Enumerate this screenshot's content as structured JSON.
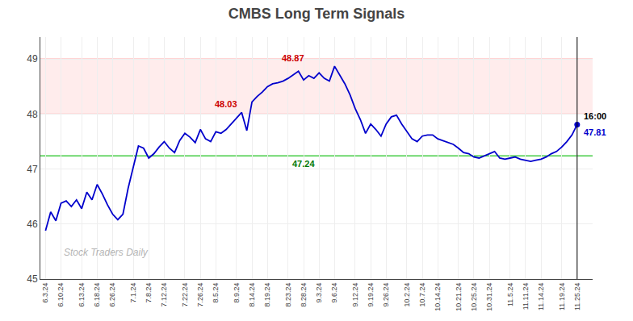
{
  "chart_data": {
    "type": "line",
    "title": "CMBS Long Term Signals",
    "categories": [
      "6.3.24",
      null,
      null,
      "6.10.24",
      null,
      null,
      null,
      "6.13.24",
      null,
      null,
      "6.18.24",
      null,
      null,
      "6.26.24",
      null,
      null,
      null,
      "7.1.24",
      null,
      null,
      "7.8.24",
      null,
      null,
      "7.12.24",
      null,
      null,
      null,
      "7.22.24",
      null,
      null,
      "7.26.24",
      null,
      null,
      "8.5.24",
      null,
      null,
      null,
      "8.9.24",
      null,
      null,
      "8.14.24",
      null,
      null,
      "8.19.24",
      null,
      null,
      null,
      "8.23.24",
      null,
      null,
      "8.28.24",
      null,
      null,
      "9.3.24",
      null,
      null,
      "9.6.24",
      null,
      null,
      null,
      "9.12.24",
      null,
      null,
      "9.19.24",
      null,
      null,
      "9.26.24",
      null,
      null,
      null,
      "10.2.24",
      null,
      null,
      "10.7.24",
      null,
      null,
      "10.14.24",
      null,
      null,
      null,
      "10.21.24",
      null,
      null,
      "10.25.24",
      null,
      null,
      "10.31.24",
      null,
      null,
      null,
      "11.5.24",
      null,
      null,
      "11.11.24",
      null,
      null,
      "11.14.24",
      null,
      null,
      null,
      "11.19.24",
      null,
      null,
      "11.25.24"
    ],
    "values": [
      45.88,
      46.22,
      46.06,
      46.38,
      46.42,
      46.32,
      46.44,
      46.28,
      46.58,
      46.44,
      46.72,
      46.55,
      46.35,
      46.18,
      46.08,
      46.18,
      46.65,
      47.05,
      47.42,
      47.38,
      47.2,
      47.28,
      47.4,
      47.5,
      47.38,
      47.3,
      47.52,
      47.65,
      47.58,
      47.48,
      47.72,
      47.55,
      47.5,
      47.68,
      47.65,
      47.72,
      47.82,
      47.92,
      48.03,
      47.7,
      48.22,
      48.32,
      48.4,
      48.5,
      48.55,
      48.57,
      48.6,
      48.65,
      48.72,
      48.78,
      48.62,
      48.7,
      48.65,
      48.75,
      48.65,
      48.6,
      48.87,
      48.7,
      48.55,
      48.35,
      48.1,
      47.9,
      47.65,
      47.82,
      47.72,
      47.6,
      47.82,
      47.95,
      47.98,
      47.82,
      47.68,
      47.55,
      47.5,
      47.6,
      47.62,
      47.62,
      47.55,
      47.52,
      47.48,
      47.45,
      47.38,
      47.3,
      47.28,
      47.22,
      47.2,
      47.24,
      47.28,
      47.32,
      47.2,
      47.18,
      47.2,
      47.22,
      47.18,
      47.16,
      47.14,
      47.16,
      47.18,
      47.22,
      47.28,
      47.32,
      47.4,
      47.5,
      47.62,
      47.81
    ],
    "color": "#0000cc",
    "ylim": [
      45,
      49.4
    ],
    "yticks": [
      45,
      46,
      47,
      48,
      49
    ],
    "grid": true,
    "band": {
      "y0": 48.0,
      "y1": 49.0,
      "color": "#ffdddd"
    },
    "reference_lines": [
      {
        "y": 48.0,
        "color": "#ffaaaa"
      },
      {
        "y": 49.0,
        "color": "#ffaaaa"
      },
      {
        "y": 47.24,
        "color": "#44cc44"
      }
    ],
    "annotations": [
      {
        "text": "48.87",
        "x": 48,
        "y": 48.87,
        "color": "#cc0000",
        "position": "above"
      },
      {
        "text": "48.03",
        "x": 35,
        "y": 48.03,
        "color": "#cc0000",
        "position": "above"
      },
      {
        "text": "47.24",
        "x": 50,
        "y": 47.24,
        "color": "#007700",
        "position": "below"
      },
      {
        "text": "16:00",
        "x": 103,
        "y": 47.81,
        "color": "#000000",
        "position": "above right"
      },
      {
        "text": "47.81",
        "x": 103,
        "y": 47.81,
        "color": "#0000cc",
        "position": "below right"
      }
    ],
    "watermark": "Stock Traders Daily"
  }
}
